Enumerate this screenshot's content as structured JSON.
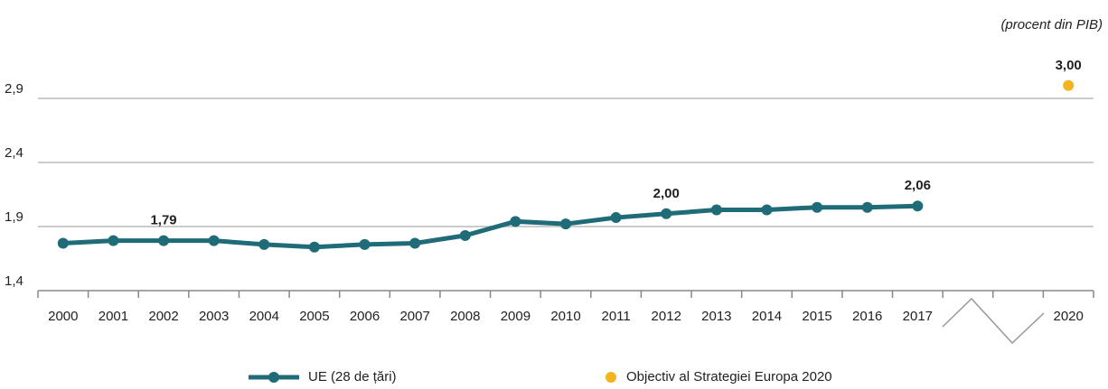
{
  "chart_data": {
    "type": "line",
    "unit": "(procent din PIB)",
    "categories": [
      "2000",
      "2001",
      "2002",
      "2003",
      "2004",
      "2005",
      "2006",
      "2007",
      "2008",
      "2009",
      "2010",
      "2011",
      "2012",
      "2013",
      "2014",
      "2015",
      "2016",
      "2017",
      null,
      null,
      "2020"
    ],
    "series": [
      {
        "name": "UE (28 de țări)",
        "color": "#1f6b78",
        "values": [
          1.77,
          1.79,
          1.79,
          1.79,
          1.76,
          1.74,
          1.76,
          1.77,
          1.83,
          1.94,
          1.92,
          1.97,
          2.0,
          2.03,
          2.03,
          2.05,
          2.05,
          2.06,
          null,
          null,
          null
        ],
        "value_labels": [
          null,
          null,
          "1,79",
          null,
          null,
          null,
          null,
          null,
          null,
          null,
          null,
          null,
          "2,00",
          null,
          null,
          null,
          null,
          "2,06",
          null,
          null,
          null
        ]
      },
      {
        "name": "Objectiv al Strategiei Europa 2020",
        "color": "#f5b41e",
        "values": [
          null,
          null,
          null,
          null,
          null,
          null,
          null,
          null,
          null,
          null,
          null,
          null,
          null,
          null,
          null,
          null,
          null,
          null,
          null,
          null,
          3.0
        ],
        "value_labels": [
          null,
          null,
          null,
          null,
          null,
          null,
          null,
          null,
          null,
          null,
          null,
          null,
          null,
          null,
          null,
          null,
          null,
          null,
          null,
          null,
          "3,00"
        ]
      }
    ],
    "ylim": [
      1.4,
      3.1
    ],
    "yticks": [
      {
        "value": 1.4,
        "label": "1,4"
      },
      {
        "value": 1.9,
        "label": "1,9"
      },
      {
        "value": 2.4,
        "label": "2,4"
      },
      {
        "value": 2.9,
        "label": "2,9"
      }
    ],
    "grid": true,
    "legend": "bottom"
  }
}
